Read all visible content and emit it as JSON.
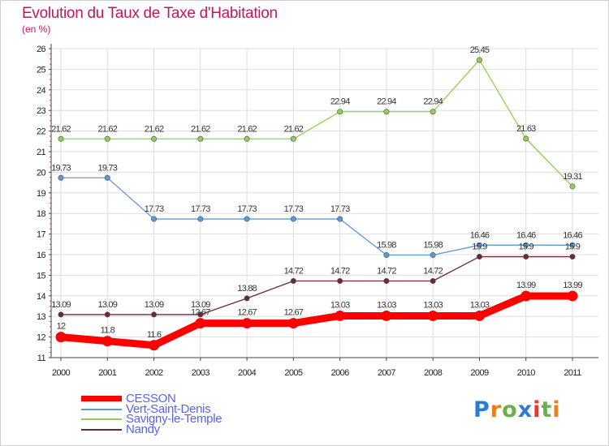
{
  "title": "Evolution du Taux de Taxe d'Habitation",
  "unit_label": "(en %)",
  "logo": {
    "letters": [
      "P",
      "r",
      "o",
      "x",
      "i",
      "t",
      "i"
    ],
    "colors": [
      "#2e7bd6",
      "#ef7d1a",
      "#6ab04c",
      "#2e7bd6",
      "#e53935",
      "#6ab04c",
      "#ef7d1a"
    ]
  },
  "chart_data": {
    "type": "line",
    "x": [
      "2000",
      "2001",
      "2002",
      "2003",
      "2004",
      "2005",
      "2006",
      "2007",
      "2008",
      "2009",
      "2010",
      "2011"
    ],
    "ylim": [
      11,
      26
    ],
    "yticks": [
      "11",
      "12",
      "13",
      "14",
      "15",
      "16",
      "17",
      "18",
      "19",
      "20",
      "21",
      "22",
      "23",
      "24",
      "25",
      "26"
    ],
    "grid": true,
    "series": [
      {
        "name": "CESSON",
        "color": "#ff0000",
        "values": [
          12,
          11.8,
          11.6,
          12.67,
          12.67,
          12.67,
          13.03,
          13.03,
          13.03,
          13.03,
          13.99,
          13.99
        ],
        "labels": [
          "12",
          "11.8",
          "11.6",
          "12.67",
          "12.67",
          "12.67",
          "13.03",
          "13.03",
          "13.03",
          "13.03",
          "13.99",
          "13.99"
        ]
      },
      {
        "name": "Vert-Saint-Denis",
        "color": "#5b9bd5",
        "values": [
          19.73,
          19.73,
          17.73,
          17.73,
          17.73,
          17.73,
          17.73,
          15.98,
          15.98,
          16.46,
          16.46,
          16.46
        ],
        "labels": [
          "19.73",
          "19.73",
          "17.73",
          "17.73",
          "17.73",
          "17.73",
          "17.73",
          "15.98",
          "15.98",
          "16.46",
          "16.46",
          "16.46"
        ]
      },
      {
        "name": "Savigny-le-Temple",
        "color": "#8ed14f",
        "values": [
          21.62,
          21.62,
          21.62,
          21.62,
          21.62,
          21.62,
          22.94,
          22.94,
          22.94,
          25.45,
          21.63,
          19.31
        ],
        "labels": [
          "21.62",
          "21.62",
          "21.62",
          "21.62",
          "21.62",
          "21.62",
          "22.94",
          "22.94",
          "22.94",
          "25.45",
          "21.63",
          "19.31"
        ]
      },
      {
        "name": "Nandy",
        "color": "#6b2a35",
        "values": [
          13.09,
          13.09,
          13.09,
          13.09,
          13.88,
          14.72,
          14.72,
          14.72,
          14.72,
          15.9,
          15.9,
          15.9
        ],
        "labels": [
          "13.09",
          "13.09",
          "13.09",
          "13.09",
          "13.88",
          "14.72",
          "14.72",
          "14.72",
          "14.72",
          "15.9",
          "15.9",
          "15.9"
        ]
      }
    ]
  }
}
